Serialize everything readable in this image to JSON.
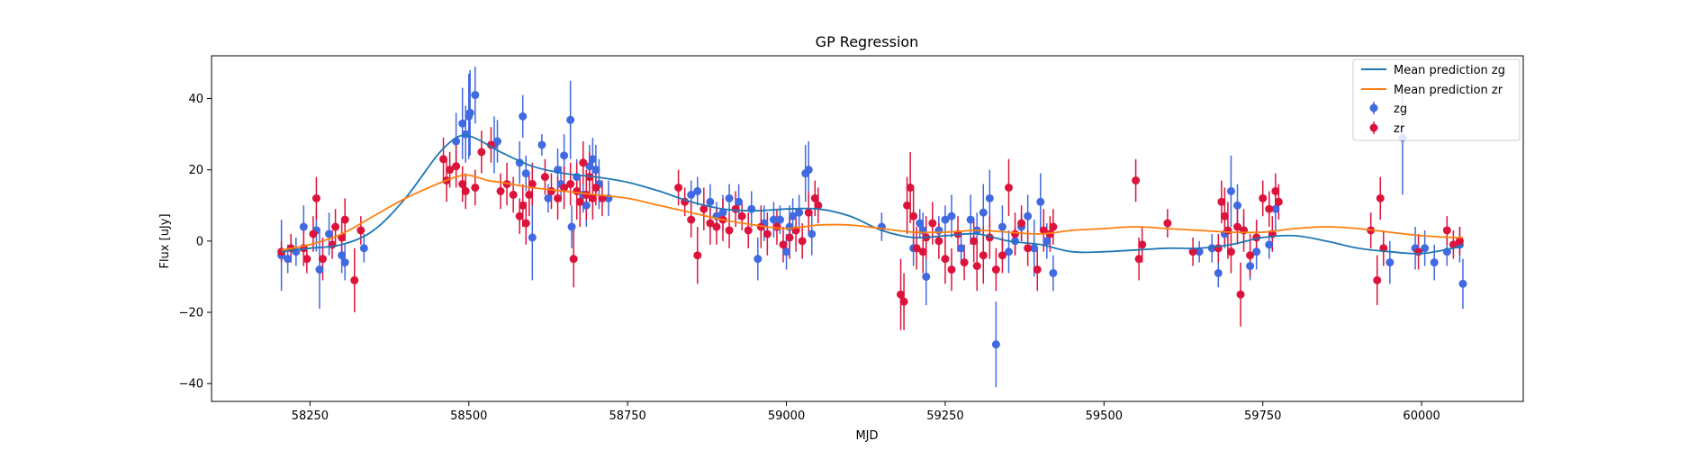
{
  "chart_data": {
    "type": "scatter",
    "title": "GP Regression",
    "xlabel": "MJD",
    "ylabel": "Flux [uJy]",
    "xlim": [
      58095,
      60160
    ],
    "ylim": [
      -45,
      52
    ],
    "xticks": [
      58250,
      58500,
      58750,
      59000,
      59250,
      59500,
      59750,
      60000
    ],
    "yticks": [
      -40,
      -20,
      0,
      20,
      40
    ],
    "grid": false,
    "legend_position": "top-right",
    "legend": [
      "Mean prediction zg",
      "Mean prediction zr",
      "zg",
      "zr"
    ],
    "colors": {
      "zg_line": "#1f77b4",
      "zr_line": "#ff7f0e",
      "zg_points": "#4169e1",
      "zr_points": "#dc143c"
    },
    "series": [
      {
        "name": "Mean prediction zg",
        "kind": "line",
        "x": [
          58205,
          58250,
          58300,
          58350,
          58400,
          58450,
          58480,
          58500,
          58520,
          58550,
          58600,
          58650,
          58700,
          58750,
          58800,
          58850,
          58900,
          58950,
          59000,
          59050,
          59100,
          59150,
          59200,
          59250,
          59300,
          59350,
          59400,
          59450,
          59500,
          59550,
          59600,
          59650,
          59700,
          59750,
          59800,
          59850,
          59900,
          59950,
          60000,
          60050,
          60065
        ],
        "y": [
          -3,
          -2,
          -1,
          3,
          12,
          24,
          29,
          29.5,
          28,
          25,
          21,
          19,
          18,
          16.5,
          14,
          11,
          9,
          8.5,
          9,
          9,
          7,
          3,
          1,
          1.5,
          2,
          0,
          -1,
          -3,
          -3,
          -2.5,
          -2,
          -2,
          -1,
          1,
          1.5,
          0,
          -2,
          -3,
          -3.5,
          -2,
          -1.5
        ]
      },
      {
        "name": "Mean prediction zr",
        "kind": "line",
        "x": [
          58205,
          58250,
          58300,
          58350,
          58400,
          58450,
          58480,
          58500,
          58530,
          58550,
          58600,
          58650,
          58700,
          58750,
          58800,
          58850,
          58900,
          58950,
          59000,
          59050,
          59100,
          59150,
          59200,
          59250,
          59300,
          59350,
          59400,
          59450,
          59500,
          59550,
          59600,
          59650,
          59700,
          59750,
          59800,
          59850,
          59900,
          59950,
          60000,
          60050,
          60065
        ],
        "y": [
          -2.5,
          -1,
          2,
          7,
          12,
          16,
          18,
          18.5,
          17,
          16.5,
          15,
          14,
          13,
          12,
          10,
          8,
          6,
          4.5,
          3.5,
          4.5,
          4.5,
          3.5,
          2.5,
          2.5,
          3,
          2.5,
          2,
          3,
          3.5,
          4,
          3.5,
          3,
          2.5,
          2.5,
          3.5,
          4,
          3.5,
          2.5,
          1.5,
          1,
          1
        ]
      },
      {
        "name": "zg",
        "kind": "errorbar",
        "points": [
          [
            58205,
            -4,
            10
          ],
          [
            58215,
            -5,
            4
          ],
          [
            58228,
            -3,
            4
          ],
          [
            58240,
            4,
            6
          ],
          [
            58260,
            3,
            6
          ],
          [
            58265,
            -8,
            11
          ],
          [
            58280,
            2,
            6
          ],
          [
            58300,
            -4,
            5
          ],
          [
            58305,
            -6,
            5
          ],
          [
            58335,
            -2,
            4
          ],
          [
            58480,
            28,
            8
          ],
          [
            58490,
            33,
            10
          ],
          [
            58495,
            30,
            8
          ],
          [
            58500,
            35,
            12
          ],
          [
            58502,
            36,
            12
          ],
          [
            58510,
            41,
            8
          ],
          [
            58540,
            27,
            8
          ],
          [
            58545,
            28,
            6
          ],
          [
            58580,
            22,
            6
          ],
          [
            58585,
            35,
            6
          ],
          [
            58590,
            19,
            5
          ],
          [
            58600,
            1,
            12
          ],
          [
            58615,
            27,
            3
          ],
          [
            58625,
            12,
            4
          ],
          [
            58640,
            20,
            6
          ],
          [
            58645,
            16,
            5
          ],
          [
            58650,
            24,
            6
          ],
          [
            58660,
            34,
            11
          ],
          [
            58662,
            4,
            6
          ],
          [
            58670,
            18,
            5
          ],
          [
            58680,
            13,
            5
          ],
          [
            58685,
            10,
            6
          ],
          [
            58690,
            21,
            6
          ],
          [
            58695,
            23,
            6
          ],
          [
            58700,
            20,
            7
          ],
          [
            58705,
            16,
            7
          ],
          [
            58720,
            12,
            5
          ],
          [
            58850,
            13,
            4
          ],
          [
            58860,
            14,
            4
          ],
          [
            58880,
            11,
            5
          ],
          [
            58890,
            7,
            4
          ],
          [
            58900,
            8,
            5
          ],
          [
            58910,
            12,
            4
          ],
          [
            58925,
            11,
            5
          ],
          [
            58945,
            9,
            5
          ],
          [
            58955,
            -5,
            6
          ],
          [
            58965,
            5,
            5
          ],
          [
            58980,
            6,
            5
          ],
          [
            58990,
            6,
            4
          ],
          [
            59000,
            -3,
            5
          ],
          [
            59005,
            4,
            6
          ],
          [
            59010,
            7,
            5
          ],
          [
            59020,
            8,
            5
          ],
          [
            59030,
            19,
            8
          ],
          [
            59035,
            20,
            8
          ],
          [
            59040,
            2,
            6
          ],
          [
            59150,
            4,
            4
          ],
          [
            59200,
            -2,
            5
          ],
          [
            59210,
            5,
            4
          ],
          [
            59215,
            3,
            5
          ],
          [
            59220,
            -10,
            8
          ],
          [
            59240,
            3,
            4
          ],
          [
            59250,
            6,
            4
          ],
          [
            59260,
            7,
            6
          ],
          [
            59275,
            -2,
            4
          ],
          [
            59290,
            6,
            7
          ],
          [
            59300,
            3,
            5
          ],
          [
            59310,
            8,
            8
          ],
          [
            59320,
            12,
            8
          ],
          [
            59330,
            -29,
            12
          ],
          [
            59340,
            4,
            6
          ],
          [
            59350,
            -3,
            6
          ],
          [
            59360,
            0,
            4
          ],
          [
            59370,
            4,
            4
          ],
          [
            59380,
            7,
            6
          ],
          [
            59390,
            -2,
            8
          ],
          [
            59400,
            11,
            8
          ],
          [
            59410,
            0,
            5
          ],
          [
            59420,
            -9,
            5
          ],
          [
            59650,
            -3,
            3
          ],
          [
            59670,
            -2,
            4
          ],
          [
            59680,
            -9,
            4
          ],
          [
            59690,
            2,
            4
          ],
          [
            59700,
            14,
            10
          ],
          [
            59710,
            10,
            6
          ],
          [
            59720,
            3,
            4
          ],
          [
            59730,
            -7,
            4
          ],
          [
            59740,
            -3,
            5
          ],
          [
            59760,
            -1,
            4
          ],
          [
            59770,
            9,
            6
          ],
          [
            59950,
            -6,
            6
          ],
          [
            59970,
            29,
            16
          ],
          [
            59990,
            -2,
            6
          ],
          [
            60005,
            -2,
            5
          ],
          [
            60020,
            -6,
            5
          ],
          [
            60040,
            -3,
            4
          ],
          [
            60060,
            -1,
            5
          ],
          [
            60065,
            -12,
            7
          ]
        ]
      },
      {
        "name": "zr",
        "kind": "errorbar",
        "points": [
          [
            58205,
            -3,
            3
          ],
          [
            58220,
            -2,
            4
          ],
          [
            58240,
            -2,
            5
          ],
          [
            58245,
            -5,
            4
          ],
          [
            58255,
            2,
            5
          ],
          [
            58260,
            12,
            6
          ],
          [
            58270,
            -5,
            6
          ],
          [
            58285,
            -1,
            4
          ],
          [
            58290,
            4,
            5
          ],
          [
            58300,
            1,
            5
          ],
          [
            58305,
            6,
            6
          ],
          [
            58320,
            -11,
            9
          ],
          [
            58330,
            3,
            4
          ],
          [
            58460,
            23,
            6
          ],
          [
            58465,
            17,
            6
          ],
          [
            58470,
            20,
            5
          ],
          [
            58480,
            21,
            6
          ],
          [
            58490,
            16,
            5
          ],
          [
            58495,
            14,
            5
          ],
          [
            58510,
            15,
            5
          ],
          [
            58520,
            25,
            6
          ],
          [
            58535,
            27,
            5
          ],
          [
            58550,
            14,
            5
          ],
          [
            58560,
            16,
            6
          ],
          [
            58570,
            13,
            5
          ],
          [
            58580,
            7,
            5
          ],
          [
            58585,
            10,
            6
          ],
          [
            58590,
            5,
            6
          ],
          [
            58595,
            13,
            6
          ],
          [
            58600,
            16,
            6
          ],
          [
            58620,
            18,
            5
          ],
          [
            58630,
            14,
            5
          ],
          [
            58640,
            12,
            6
          ],
          [
            58650,
            15,
            6
          ],
          [
            58660,
            16,
            6
          ],
          [
            58665,
            -5,
            8
          ],
          [
            58670,
            14,
            8
          ],
          [
            58675,
            11,
            7
          ],
          [
            58680,
            22,
            6
          ],
          [
            58685,
            13,
            7
          ],
          [
            58690,
            18,
            7
          ],
          [
            58695,
            12,
            6
          ],
          [
            58700,
            15,
            5
          ],
          [
            58710,
            12,
            5
          ],
          [
            58830,
            15,
            5
          ],
          [
            58840,
            11,
            4
          ],
          [
            58850,
            6,
            5
          ],
          [
            58860,
            -4,
            8
          ],
          [
            58870,
            9,
            6
          ],
          [
            58880,
            5,
            6
          ],
          [
            58890,
            4,
            5
          ],
          [
            58900,
            6,
            6
          ],
          [
            58910,
            3,
            5
          ],
          [
            58920,
            9,
            5
          ],
          [
            58930,
            7,
            4
          ],
          [
            58940,
            3,
            5
          ],
          [
            58960,
            4,
            6
          ],
          [
            58970,
            2,
            6
          ],
          [
            58985,
            4,
            5
          ],
          [
            58995,
            -1,
            5
          ],
          [
            59005,
            1,
            6
          ],
          [
            59015,
            3,
            6
          ],
          [
            59025,
            0,
            5
          ],
          [
            59035,
            8,
            6
          ],
          [
            59045,
            12,
            5
          ],
          [
            59050,
            10,
            5
          ],
          [
            59180,
            -15,
            10
          ],
          [
            59185,
            -17,
            8
          ],
          [
            59190,
            10,
            8
          ],
          [
            59195,
            15,
            10
          ],
          [
            59200,
            7,
            8
          ],
          [
            59205,
            -2,
            6
          ],
          [
            59215,
            -3,
            6
          ],
          [
            59220,
            1,
            6
          ],
          [
            59230,
            5,
            6
          ],
          [
            59240,
            0,
            5
          ],
          [
            59250,
            -5,
            7
          ],
          [
            59260,
            -8,
            6
          ],
          [
            59270,
            2,
            5
          ],
          [
            59280,
            -6,
            5
          ],
          [
            59295,
            0,
            6
          ],
          [
            59300,
            -7,
            7
          ],
          [
            59310,
            -4,
            8
          ],
          [
            59320,
            1,
            6
          ],
          [
            59330,
            -8,
            6
          ],
          [
            59340,
            -4,
            5
          ],
          [
            59350,
            15,
            8
          ],
          [
            59360,
            2,
            6
          ],
          [
            59370,
            5,
            5
          ],
          [
            59380,
            -2,
            5
          ],
          [
            59395,
            -8,
            6
          ],
          [
            59405,
            3,
            6
          ],
          [
            59415,
            2,
            5
          ],
          [
            59420,
            4,
            5
          ],
          [
            59550,
            17,
            6
          ],
          [
            59555,
            -5,
            6
          ],
          [
            59560,
            -1,
            5
          ],
          [
            59600,
            5,
            4
          ],
          [
            59640,
            -3,
            4
          ],
          [
            59680,
            -2,
            4
          ],
          [
            59685,
            11,
            6
          ],
          [
            59690,
            7,
            8
          ],
          [
            59695,
            3,
            8
          ],
          [
            59700,
            -3,
            6
          ],
          [
            59710,
            4,
            5
          ],
          [
            59715,
            -15,
            9
          ],
          [
            59720,
            3,
            6
          ],
          [
            59730,
            -4,
            6
          ],
          [
            59740,
            1,
            5
          ],
          [
            59750,
            12,
            5
          ],
          [
            59760,
            9,
            5
          ],
          [
            59765,
            2,
            5
          ],
          [
            59770,
            14,
            5
          ],
          [
            59775,
            11,
            5
          ],
          [
            59920,
            3,
            5
          ],
          [
            59930,
            -11,
            7
          ],
          [
            59935,
            12,
            6
          ],
          [
            59940,
            -2,
            5
          ],
          [
            59995,
            -3,
            5
          ],
          [
            60040,
            3,
            4
          ],
          [
            60050,
            -1,
            4
          ],
          [
            60060,
            0,
            4
          ]
        ]
      }
    ]
  }
}
